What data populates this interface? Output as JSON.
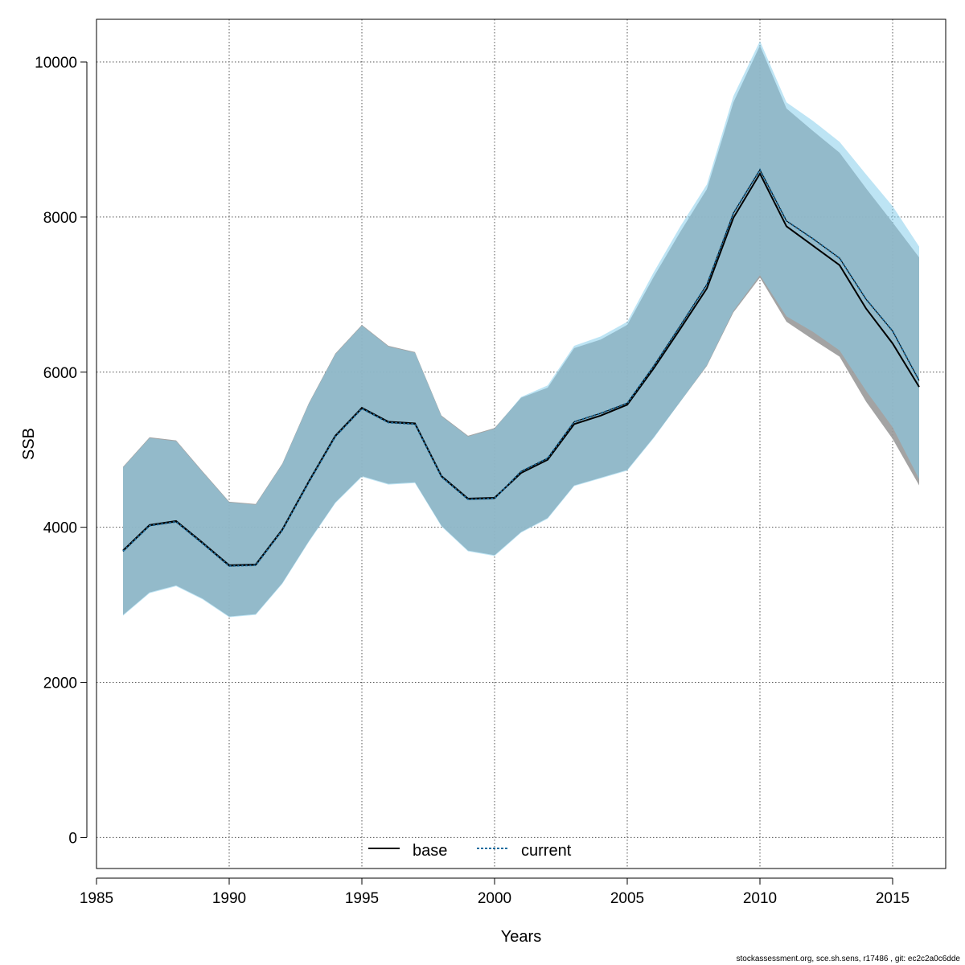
{
  "chart_data": {
    "type": "line",
    "xlabel": "Years",
    "ylabel": "SSB",
    "xlim": [
      1985,
      2017
    ],
    "ylim": [
      -400,
      10550
    ],
    "xticks": [
      1985,
      1990,
      1995,
      2000,
      2005,
      2010,
      2015
    ],
    "yticks": [
      0,
      2000,
      4000,
      6000,
      8000,
      10000
    ],
    "grid": true,
    "legend_position": "bottom-center",
    "x": [
      1986,
      1987,
      1988,
      1989,
      1990,
      1991,
      1992,
      1993,
      1994,
      1995,
      1996,
      1997,
      1998,
      1999,
      2000,
      2001,
      2002,
      2003,
      2004,
      2005,
      2006,
      2007,
      2008,
      2009,
      2010,
      2011,
      2012,
      2013,
      2014,
      2015,
      2016
    ],
    "series": [
      {
        "name": "base",
        "line_style": "solid",
        "line_color": "#000000",
        "band_color": "#999999",
        "values": [
          3700,
          4030,
          4080,
          3800,
          3510,
          3520,
          3970,
          4590,
          5180,
          5540,
          5360,
          5340,
          4660,
          4370,
          4380,
          4700,
          4870,
          5330,
          5440,
          5580,
          6050,
          6560,
          7080,
          7990,
          8560,
          7880,
          7630,
          7380,
          6820,
          6370,
          5810
        ],
        "lower": [
          2870,
          3160,
          3250,
          3080,
          2850,
          2880,
          3280,
          3820,
          4320,
          4660,
          4560,
          4580,
          4020,
          3700,
          3640,
          3940,
          4120,
          4540,
          4640,
          4740,
          5160,
          5620,
          6080,
          6770,
          7220,
          6650,
          6420,
          6200,
          5620,
          5140,
          4540
        ],
        "upper": [
          4780,
          5160,
          5120,
          4720,
          4330,
          4300,
          4820,
          5600,
          6240,
          6610,
          6340,
          6260,
          5440,
          5180,
          5280,
          5670,
          5800,
          6310,
          6420,
          6610,
          7230,
          7810,
          8360,
          9480,
          10210,
          9400,
          9110,
          8830,
          8370,
          7930,
          7480
        ]
      },
      {
        "name": "current",
        "line_style": "dashed",
        "line_color": "#1f6fa0",
        "band_color": "#87ceeb",
        "values": [
          3690,
          4020,
          4070,
          3790,
          3500,
          3510,
          3960,
          4580,
          5170,
          5530,
          5350,
          5330,
          4650,
          4360,
          4370,
          4720,
          4890,
          5360,
          5470,
          5600,
          6080,
          6600,
          7130,
          8050,
          8610,
          7950,
          7720,
          7470,
          6940,
          6530,
          5890
        ],
        "lower": [
          2860,
          3150,
          3240,
          3070,
          2840,
          2870,
          3270,
          3810,
          4310,
          4650,
          4550,
          4570,
          4010,
          3690,
          3630,
          3930,
          4110,
          4530,
          4630,
          4730,
          5150,
          5620,
          6090,
          6790,
          7250,
          6720,
          6520,
          6280,
          5760,
          5290,
          4620
        ],
        "upper": [
          4770,
          5150,
          5110,
          4710,
          4320,
          4290,
          4810,
          5590,
          6230,
          6600,
          6330,
          6250,
          5430,
          5170,
          5270,
          5680,
          5830,
          6340,
          6460,
          6650,
          7290,
          7880,
          8420,
          9560,
          10270,
          9480,
          9240,
          8970,
          8550,
          8140,
          7620
        ]
      }
    ],
    "footer": "stockassessment.org, sce.sh.sens, r17486 , git: ec2c2a0c6dde"
  }
}
